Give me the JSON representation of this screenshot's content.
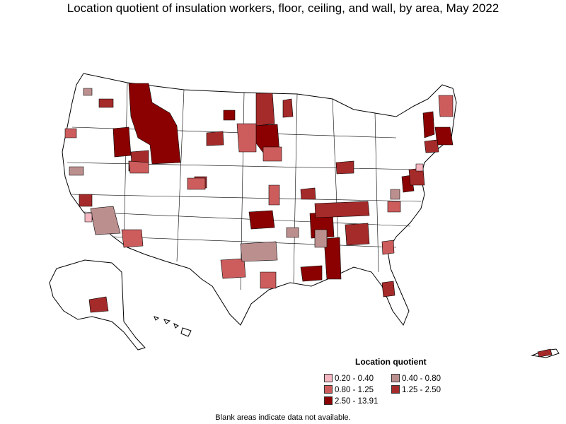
{
  "title": "Location quotient of insulation workers, floor, ceiling, and wall, by area, May 2022",
  "legend": {
    "title": "Location quotient",
    "items": [
      {
        "label": "0.20 - 0.40",
        "color": "#f4b6c0"
      },
      {
        "label": "0.40 - 0.80",
        "color": "#bc8f8f"
      },
      {
        "label": "0.80 - 1.25",
        "color": "#cd5c5c"
      },
      {
        "label": "1.25 - 2.50",
        "color": "#a52a2a"
      },
      {
        "label": "2.50 - 13.91",
        "color": "#8b0000"
      }
    ]
  },
  "note": "Blank areas indicate data not available.",
  "colors": {
    "outline": "#000000",
    "no_data": "#ffffff"
  }
}
